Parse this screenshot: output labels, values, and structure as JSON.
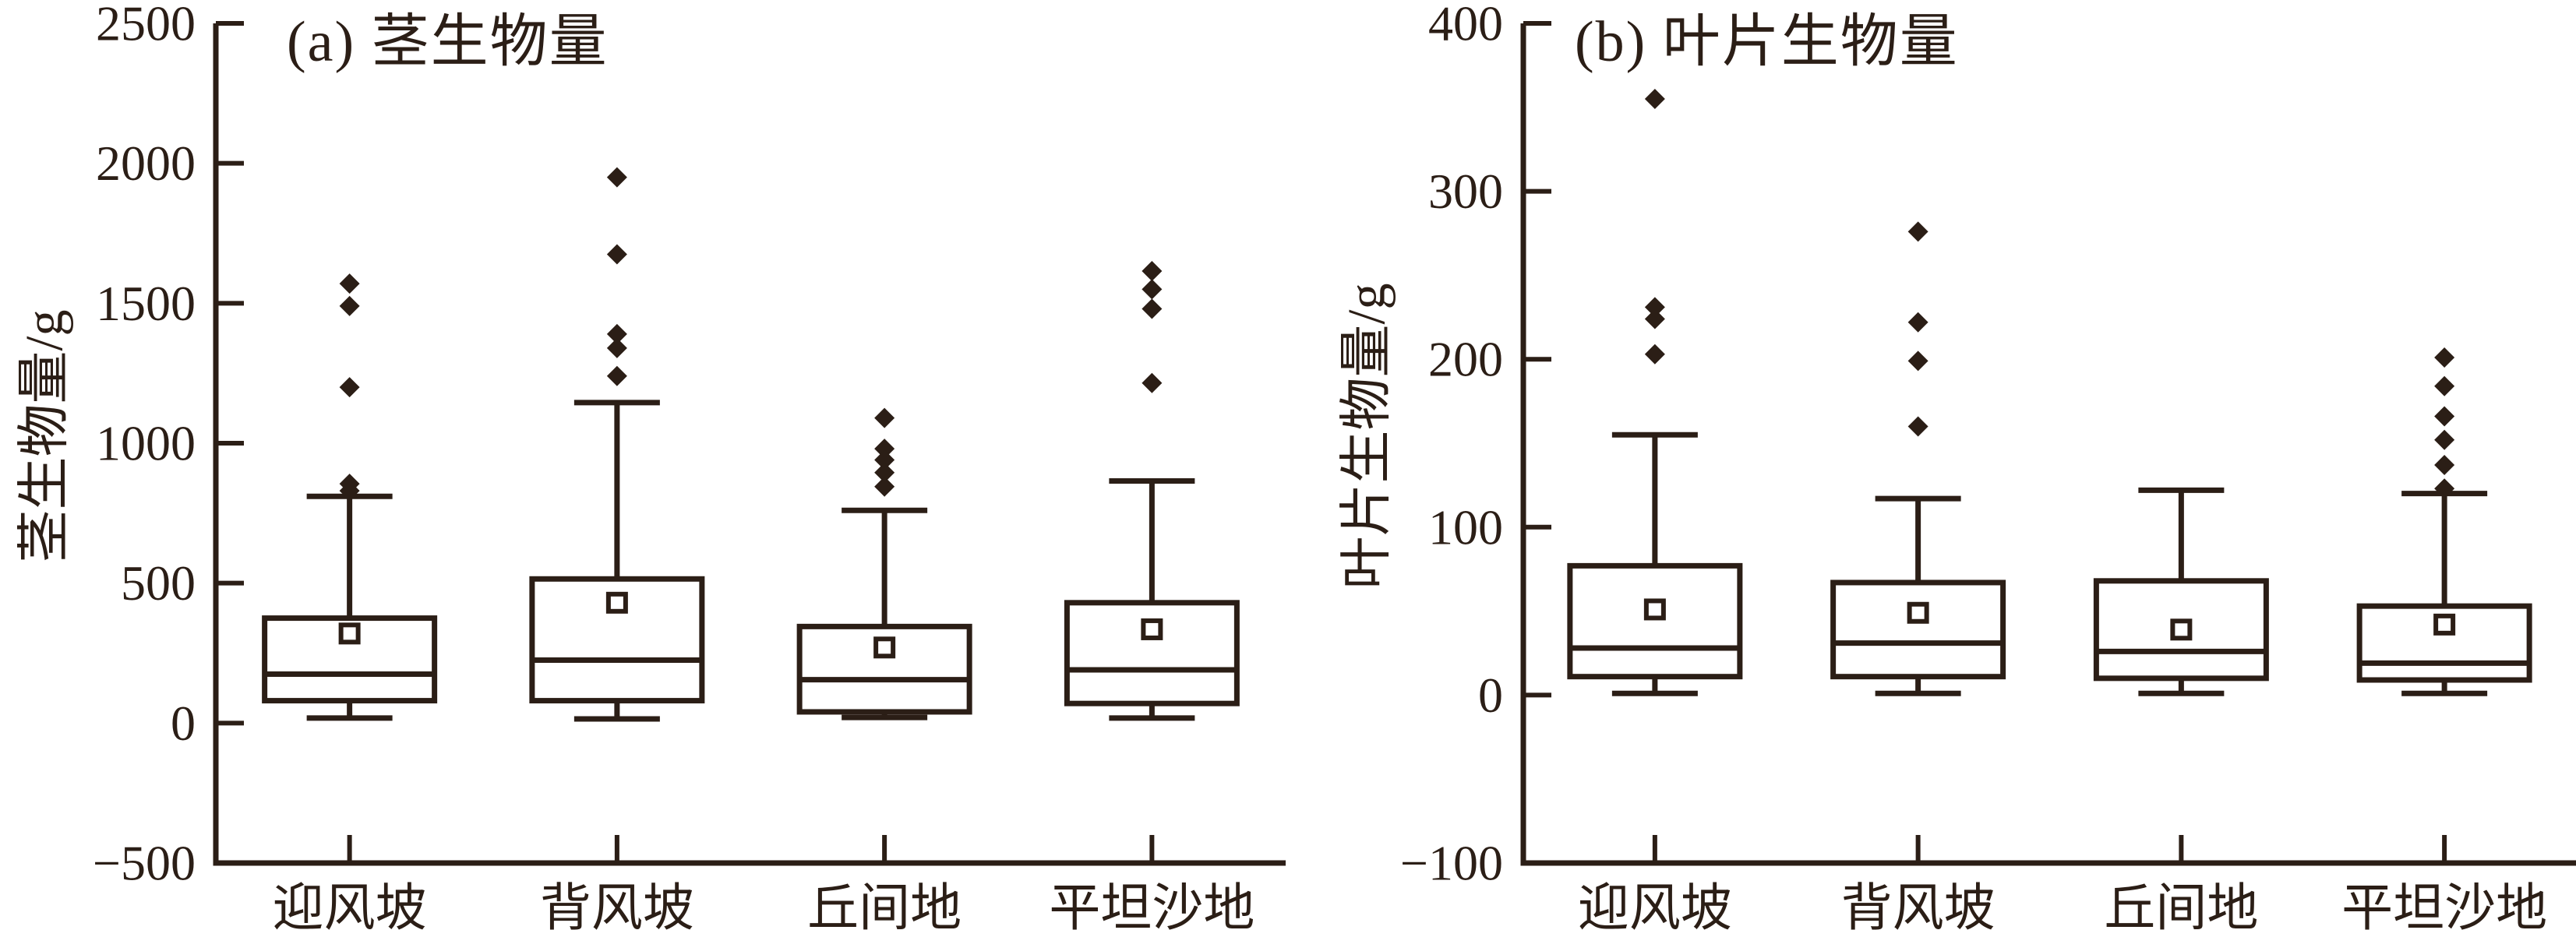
{
  "figure": {
    "background": "#ffffff",
    "ink_color": "#2b1e16"
  },
  "chart_data": [
    {
      "type": "boxplot",
      "panel_label": "(a)",
      "title": "(a) 茎生物量",
      "ylabel": "茎生物量/g",
      "xlabel": "",
      "ylim": [
        -500,
        2500
      ],
      "yticks": [
        2500,
        2000,
        1500,
        1000,
        500,
        0,
        -500
      ],
      "grid": false,
      "legend": null,
      "categories": [
        "迎风坡",
        "背风坡",
        "丘间地",
        "平坦沙地"
      ],
      "boxes": [
        {
          "category": "迎风坡",
          "whisker_low": 18,
          "q1": 80,
          "median": 175,
          "q3": 375,
          "whisker_high": 810,
          "mean": 320,
          "outliers": [
            1570,
            1490,
            1200,
            855,
            830
          ]
        },
        {
          "category": "背风坡",
          "whisker_low": 15,
          "q1": 80,
          "median": 225,
          "q3": 515,
          "whisker_high": 1145,
          "mean": 430,
          "outliers": [
            1950,
            1675,
            1390,
            1340,
            1240
          ]
        },
        {
          "category": "丘间地",
          "whisker_low": 20,
          "q1": 40,
          "median": 155,
          "q3": 345,
          "whisker_high": 760,
          "mean": 270,
          "outliers": [
            1090,
            980,
            940,
            895,
            845
          ]
        },
        {
          "category": "平坦沙地",
          "whisker_low": 18,
          "q1": 70,
          "median": 190,
          "q3": 430,
          "whisker_high": 865,
          "mean": 335,
          "outliers": [
            1615,
            1550,
            1480,
            1215
          ]
        }
      ]
    },
    {
      "type": "boxplot",
      "panel_label": "(b)",
      "title": "(b) 叶片生物量",
      "ylabel": "叶片生物量/g",
      "xlabel": "",
      "ylim": [
        -100,
        400
      ],
      "yticks": [
        400,
        300,
        200,
        100,
        0,
        -100
      ],
      "grid": false,
      "legend": null,
      "categories": [
        "迎风坡",
        "背风坡",
        "丘间地",
        "平坦沙地"
      ],
      "boxes": [
        {
          "category": "迎风坡",
          "whisker_low": 1,
          "q1": 11,
          "median": 28,
          "q3": 77,
          "whisker_high": 155,
          "mean": 51,
          "outliers": [
            355,
            231,
            224,
            203
          ]
        },
        {
          "category": "背风坡",
          "whisker_low": 1,
          "q1": 11,
          "median": 31,
          "q3": 67,
          "whisker_high": 117,
          "mean": 49,
          "outliers": [
            276,
            222,
            199,
            160
          ]
        },
        {
          "category": "丘间地",
          "whisker_low": 1,
          "q1": 10,
          "median": 26,
          "q3": 68,
          "whisker_high": 122,
          "mean": 39,
          "outliers": []
        },
        {
          "category": "平坦沙地",
          "whisker_low": 1,
          "q1": 9,
          "median": 19,
          "q3": 53,
          "whisker_high": 120,
          "mean": 42,
          "outliers": [
            201,
            184,
            166,
            152,
            137,
            123
          ]
        }
      ]
    }
  ]
}
